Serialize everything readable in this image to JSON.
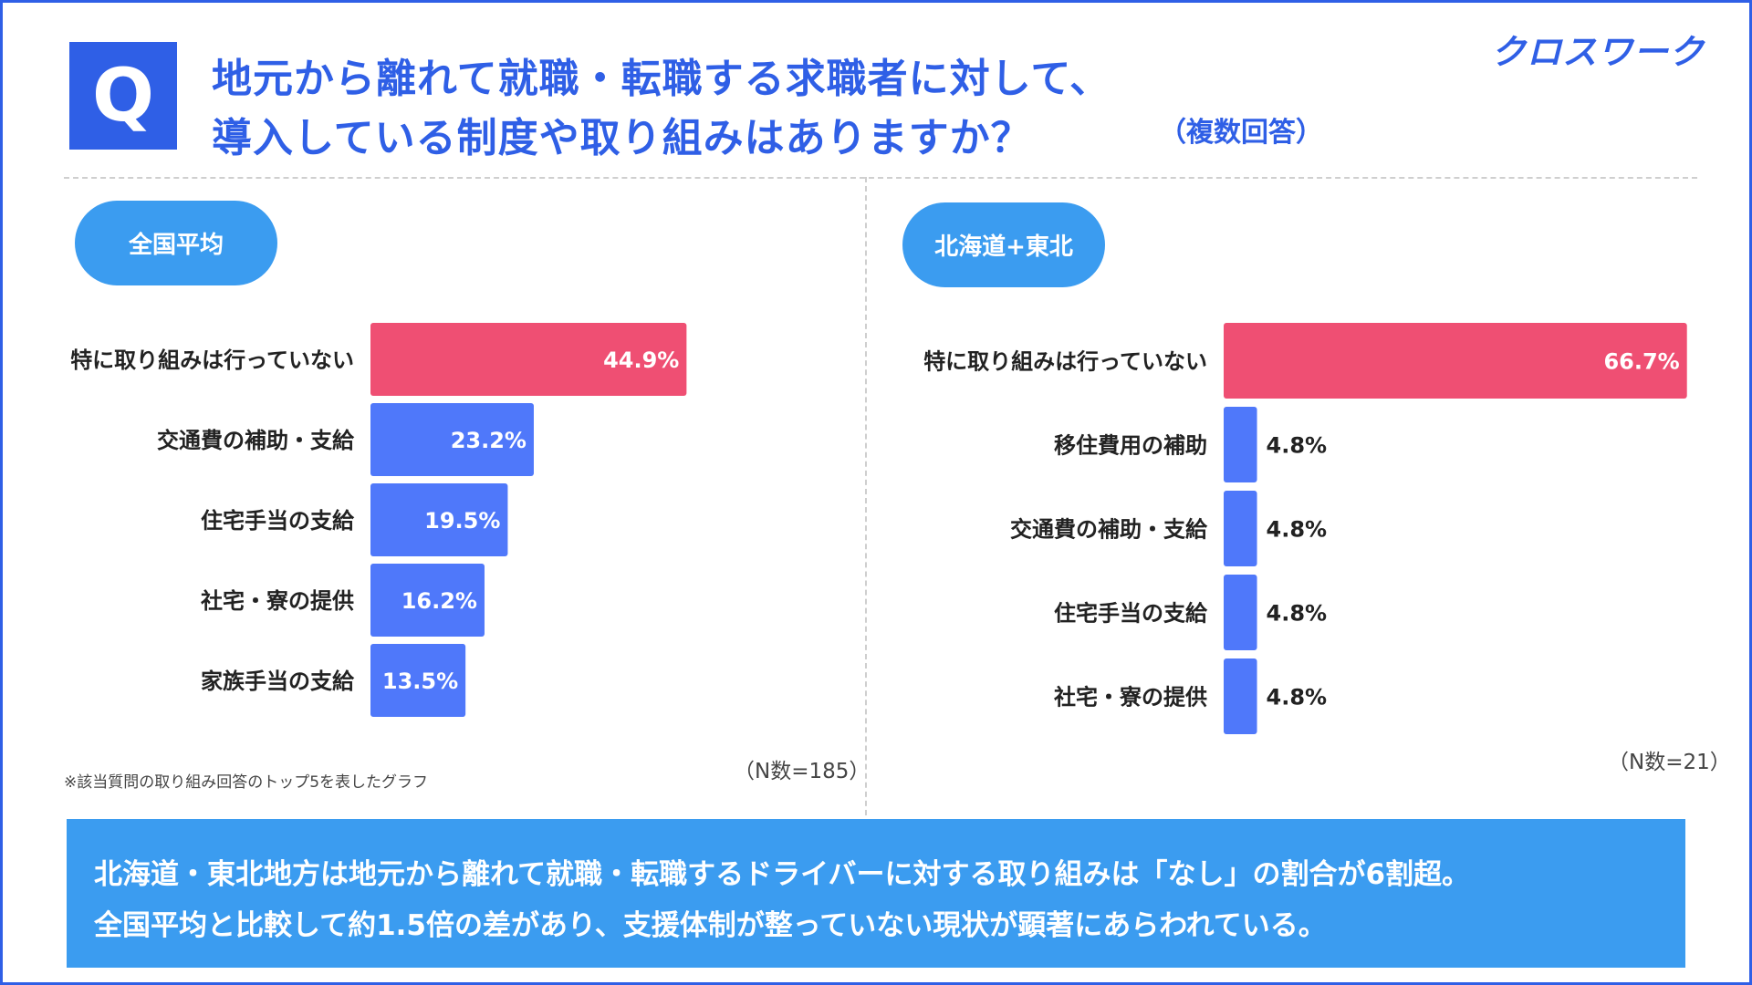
{
  "header": {
    "q_label": "Q",
    "title_line1": "地元から離れて就職・転職する求職者に対して、",
    "title_line2": "導入している制度や取り組みはありますか？",
    "title_note": "（複数回答）",
    "logo": "クロスワーク"
  },
  "chart_data": [
    {
      "type": "bar",
      "orientation": "horizontal",
      "title": "全国平均",
      "categories": [
        "特に取り組みは行っていない",
        "交通費の補助・支給",
        "住宅手当の支給",
        "社宅・寮の提供",
        "家族手当の支給"
      ],
      "values": [
        44.9,
        23.2,
        19.5,
        16.2,
        13.5
      ],
      "value_labels": [
        "44.9%",
        "23.2%",
        "19.5%",
        "16.2%",
        "13.5%"
      ],
      "xlim": [
        0,
        70
      ],
      "sample_note": "（N数=185）",
      "footnote": "※該当質問の取り組み回答のトップ5を表したグラフ"
    },
    {
      "type": "bar",
      "orientation": "horizontal",
      "title": "北海道+東北",
      "categories": [
        "特に取り組みは行っていない",
        "移住費用の補助",
        "交通費の補助・支給",
        "住宅手当の支給",
        "社宅・寮の提供"
      ],
      "values": [
        66.7,
        4.8,
        4.8,
        4.8,
        4.8
      ],
      "value_labels": [
        "66.7%",
        "4.8%",
        "4.8%",
        "4.8%",
        "4.8%"
      ],
      "xlim": [
        0,
        67
      ],
      "sample_note": "（N数=21）"
    }
  ],
  "colors": {
    "brand": "#2f5fe6",
    "highlight_bar": "#ef4f73",
    "bar": "#4f78fa",
    "pill": "#3b9cf0"
  },
  "summary": {
    "line1": "北海道・東北地方は地元から離れて就職・転職するドライバーに対する取り組みは「なし」の割合が6割超。",
    "line2": "全国平均と比較して約1.5倍の差があり、支援体制が整っていない現状が顕著にあらわれている。"
  }
}
